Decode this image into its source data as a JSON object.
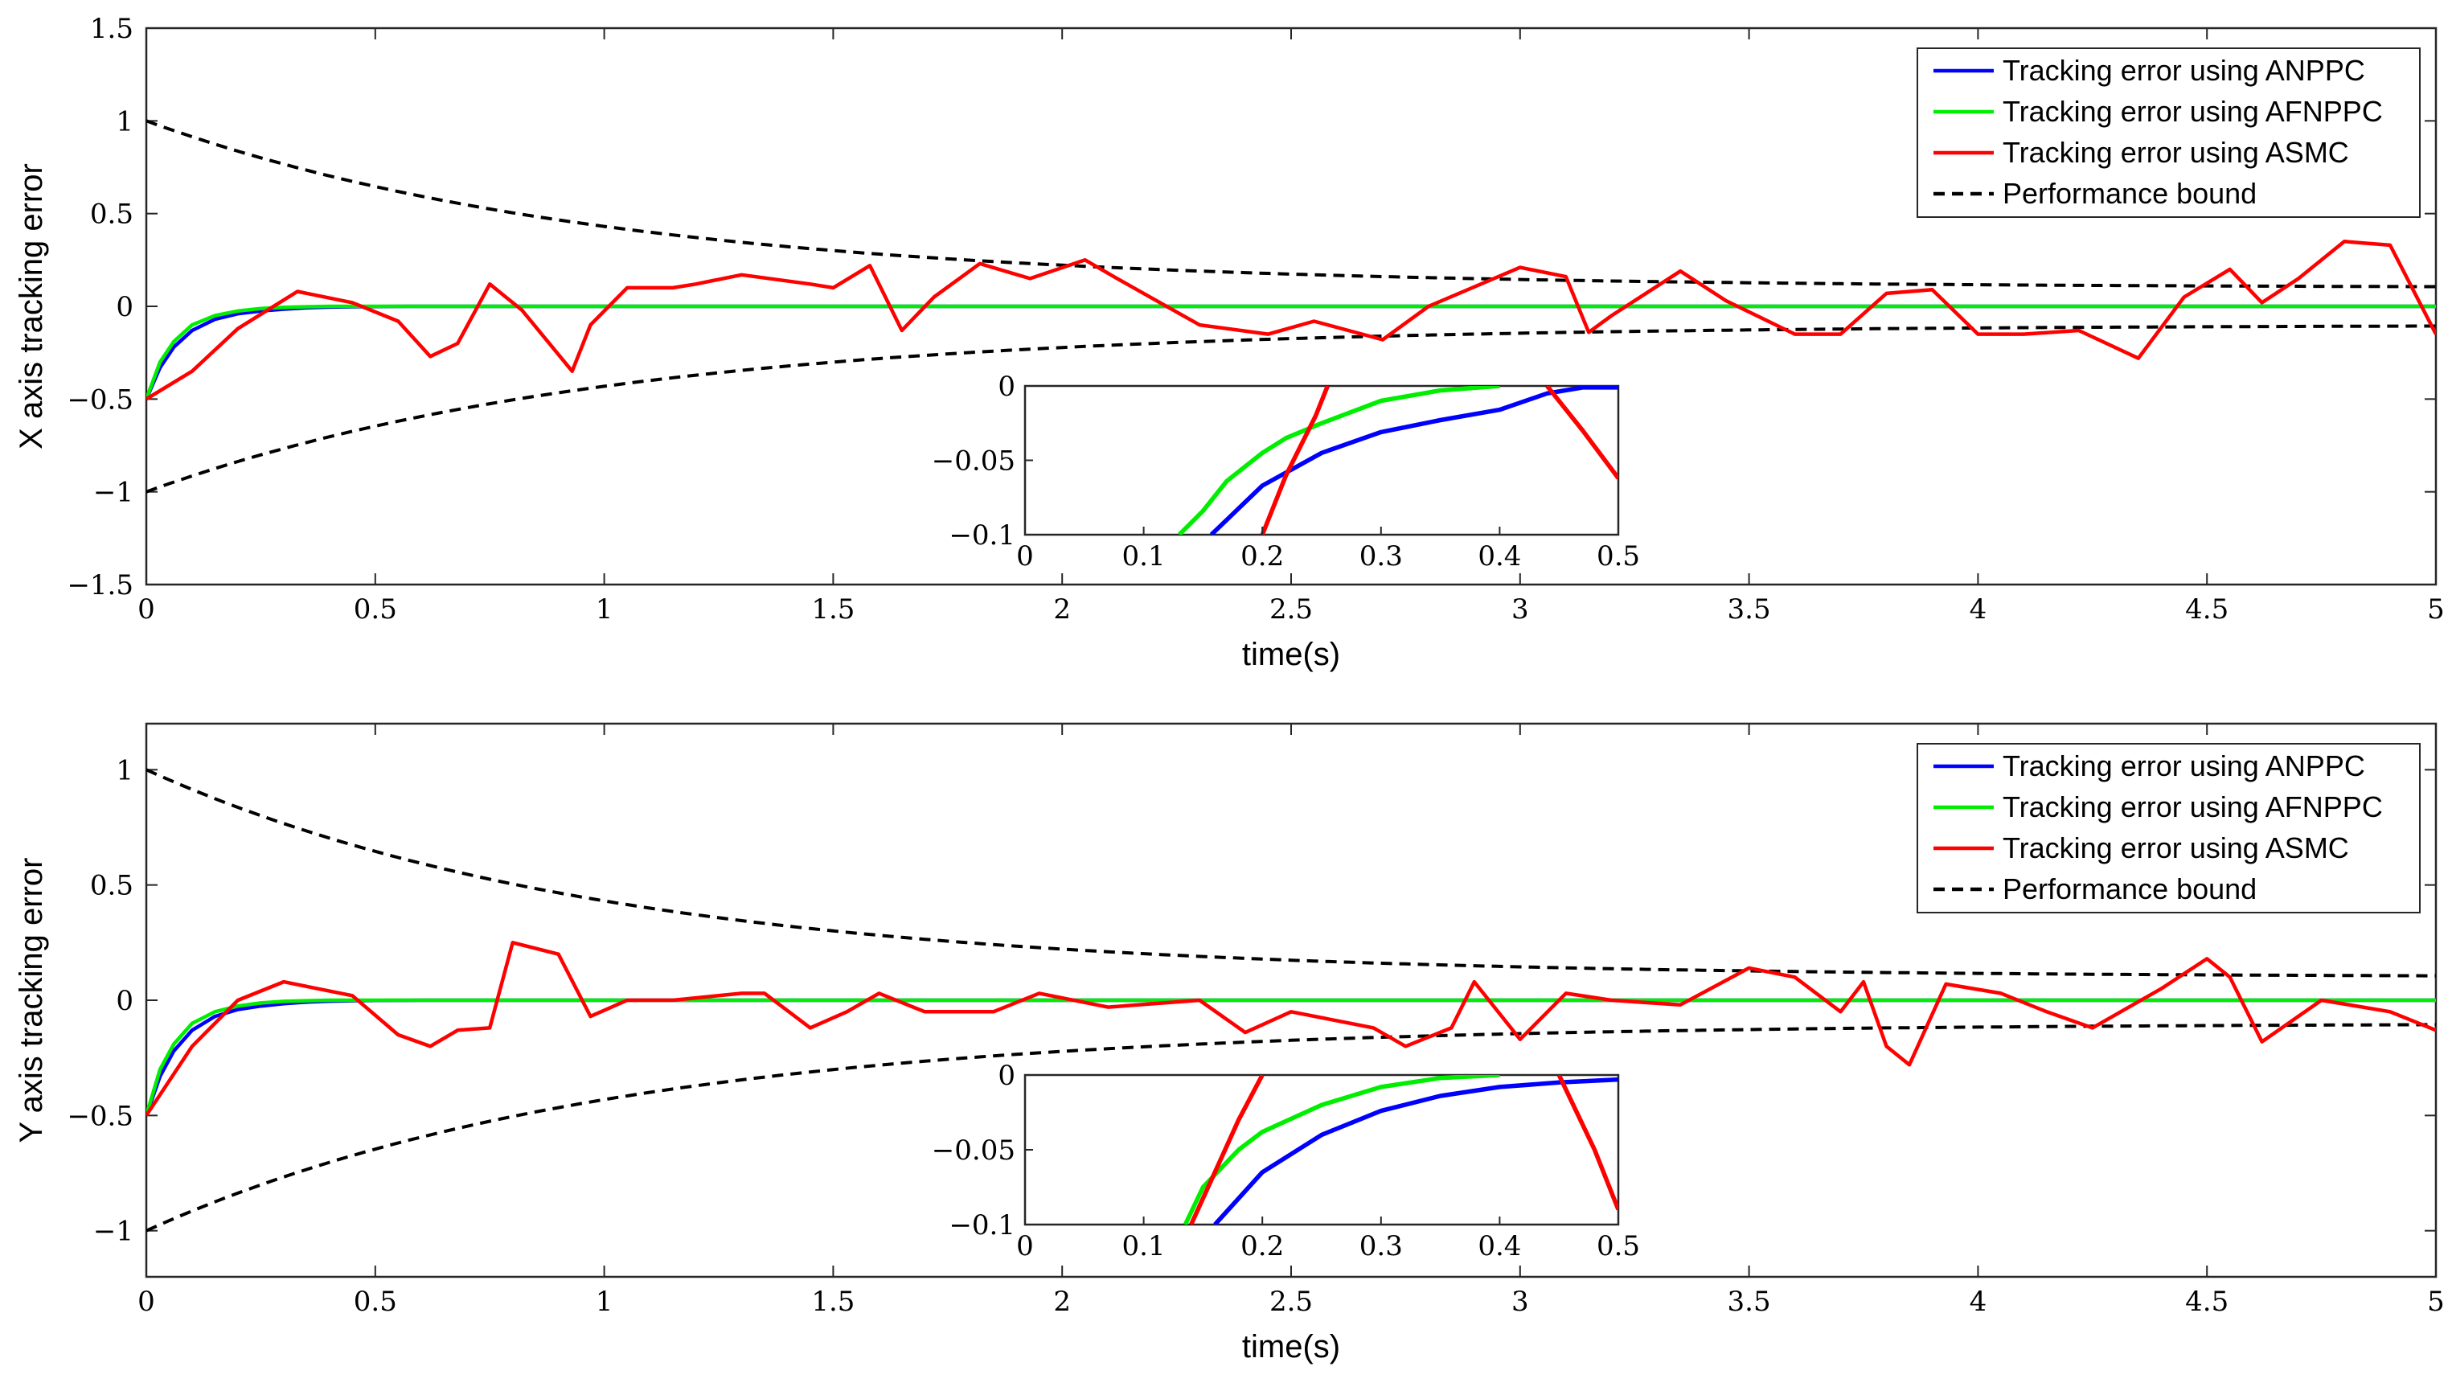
{
  "chart_data": [
    {
      "type": "line",
      "ylabel": "X axis tracking error",
      "xlabel": "time(s)",
      "xlim": [
        0,
        5
      ],
      "ylim": [
        -1.5,
        1.5
      ],
      "x_ticks": [
        "0",
        "0.5",
        "1",
        "1.5",
        "2",
        "2.5",
        "3",
        "3.5",
        "4",
        "4.5",
        "5"
      ],
      "y_ticks": [
        "−1.5",
        "−1",
        "−0.5",
        "0",
        "0.5",
        "1",
        "1.5"
      ],
      "y_tick_values": [
        -1.5,
        -1,
        -0.5,
        0,
        0.5,
        1,
        1.5
      ],
      "legend": [
        {
          "label": "Tracking error using ANPPC",
          "color": "#0000ff",
          "dash": false
        },
        {
          "label": "Tracking error using AFNPPC",
          "color": "#00ee00",
          "dash": false
        },
        {
          "label": "Tracking error using ASMC",
          "color": "#ff0000",
          "dash": false
        },
        {
          "label": "Performance bound",
          "color": "#000000",
          "dash": true
        }
      ],
      "bound": {
        "initial": 1.0,
        "final": 0.1,
        "decay_rate": 1.0
      },
      "series": [
        {
          "name": "Tracking error using ANPPC",
          "color": "#0000ff",
          "x": [
            0,
            0.03,
            0.06,
            0.1,
            0.15,
            0.2,
            0.25,
            0.3,
            0.35,
            0.4,
            0.45,
            0.5,
            0.6,
            5
          ],
          "y": [
            -0.5,
            -0.33,
            -0.22,
            -0.13,
            -0.07,
            -0.04,
            -0.025,
            -0.015,
            -0.008,
            -0.004,
            -0.002,
            -0.001,
            0,
            0
          ]
        },
        {
          "name": "Tracking error using AFNPPC",
          "color": "#00ee00",
          "x": [
            0,
            0.03,
            0.06,
            0.1,
            0.15,
            0.2,
            0.25,
            0.3,
            0.35,
            0.4,
            0.5,
            5
          ],
          "y": [
            -0.5,
            -0.3,
            -0.19,
            -0.1,
            -0.05,
            -0.025,
            -0.012,
            -0.005,
            -0.002,
            0,
            0,
            0
          ]
        },
        {
          "name": "Tracking error using ASMC",
          "color": "#ff0000",
          "x": [
            0,
            0.1,
            0.2,
            0.33,
            0.45,
            0.55,
            0.62,
            0.68,
            0.75,
            0.82,
            0.93,
            0.97,
            1.05,
            1.15,
            1.2,
            1.3,
            1.45,
            1.5,
            1.58,
            1.65,
            1.72,
            1.82,
            1.93,
            2.05,
            2.12,
            2.3,
            2.45,
            2.55,
            2.7,
            2.8,
            3.0,
            3.1,
            3.15,
            3.2,
            3.35,
            3.45,
            3.6,
            3.7,
            3.8,
            3.9,
            4.0,
            4.1,
            4.22,
            4.35,
            4.45,
            4.55,
            4.62,
            4.7,
            4.8,
            4.9,
            5.0
          ],
          "y": [
            -0.5,
            -0.35,
            -0.12,
            0.08,
            0.02,
            -0.08,
            -0.27,
            -0.2,
            0.12,
            -0.02,
            -0.35,
            -0.1,
            0.1,
            0.1,
            0.12,
            0.17,
            0.12,
            0.1,
            0.22,
            -0.13,
            0.05,
            0.23,
            0.15,
            0.25,
            0.15,
            -0.1,
            -0.15,
            -0.08,
            -0.18,
            0.0,
            0.21,
            0.16,
            -0.14,
            -0.05,
            0.19,
            0.03,
            -0.15,
            -0.15,
            0.07,
            0.09,
            -0.15,
            -0.15,
            -0.13,
            -0.28,
            0.05,
            0.2,
            0.02,
            0.15,
            0.35,
            0.33,
            -0.15
          ]
        }
      ],
      "inset": {
        "xlim": [
          0,
          0.5
        ],
        "ylim": [
          -0.1,
          0
        ],
        "x_ticks": [
          "0",
          "0.1",
          "0.2",
          "0.3",
          "0.4",
          "0.5"
        ],
        "y_ticks": [
          "−0.1",
          "−0.05",
          "0"
        ],
        "series": [
          {
            "name": "ANPPC",
            "color": "#0000ff",
            "x": [
              0.157,
              0.2,
              0.25,
              0.3,
              0.35,
              0.4,
              0.44,
              0.47,
              0.5
            ],
            "y": [
              -0.1,
              -0.067,
              -0.045,
              -0.031,
              -0.023,
              -0.016,
              -0.005,
              -0.001,
              -0.001
            ]
          },
          {
            "name": "AFNPPC",
            "color": "#00ee00",
            "x": [
              0.13,
              0.15,
              0.17,
              0.2,
              0.22,
              0.25,
              0.3,
              0.35,
              0.4
            ],
            "y": [
              -0.1,
              -0.084,
              -0.064,
              -0.045,
              -0.035,
              -0.025,
              -0.01,
              -0.003,
              0
            ]
          },
          {
            "name": "ASMC (rise)",
            "color": "#ff0000",
            "x": [
              0.2,
              0.22,
              0.245,
              0.255
            ],
            "y": [
              -0.1,
              -0.06,
              -0.02,
              0
            ]
          },
          {
            "name": "ASMC (fall)",
            "color": "#ff0000",
            "x": [
              0.44,
              0.47,
              0.5
            ],
            "y": [
              0,
              -0.03,
              -0.062
            ]
          }
        ]
      }
    },
    {
      "type": "line",
      "ylabel": "Y axis tracking error",
      "xlabel": "time(s)",
      "xlim": [
        0,
        5
      ],
      "ylim": [
        -1.2,
        1.2
      ],
      "x_ticks": [
        "0",
        "0.5",
        "1",
        "1.5",
        "2",
        "2.5",
        "3",
        "3.5",
        "4",
        "4.5",
        "5"
      ],
      "y_ticks": [
        "−1",
        "−0.5",
        "0",
        "0.5",
        "1"
      ],
      "y_tick_values": [
        -1,
        -0.5,
        0,
        0.5,
        1
      ],
      "legend": [
        {
          "label": "Tracking error using ANPPC",
          "color": "#0000ff",
          "dash": false
        },
        {
          "label": "Tracking error using AFNPPC",
          "color": "#00ee00",
          "dash": false
        },
        {
          "label": "Tracking error using ASMC",
          "color": "#ff0000",
          "dash": false
        },
        {
          "label": "Performance bound",
          "color": "#000000",
          "dash": true
        }
      ],
      "bound": {
        "initial": 1.0,
        "final": 0.1,
        "decay_rate": 1.0
      },
      "series": [
        {
          "name": "Tracking error using ANPPC",
          "color": "#0000ff",
          "x": [
            0,
            0.03,
            0.06,
            0.1,
            0.15,
            0.2,
            0.25,
            0.3,
            0.35,
            0.4,
            0.45,
            0.5,
            0.6,
            5
          ],
          "y": [
            -0.5,
            -0.33,
            -0.22,
            -0.13,
            -0.07,
            -0.04,
            -0.025,
            -0.015,
            -0.008,
            -0.004,
            -0.002,
            -0.001,
            0,
            0
          ]
        },
        {
          "name": "Tracking error using AFNPPC",
          "color": "#00ee00",
          "x": [
            0,
            0.03,
            0.06,
            0.1,
            0.15,
            0.2,
            0.25,
            0.3,
            0.35,
            0.4,
            0.5,
            5
          ],
          "y": [
            -0.5,
            -0.3,
            -0.19,
            -0.1,
            -0.05,
            -0.025,
            -0.012,
            -0.005,
            -0.002,
            0,
            0,
            0
          ]
        },
        {
          "name": "Tracking error using ASMC",
          "color": "#ff0000",
          "x": [
            0,
            0.1,
            0.2,
            0.3,
            0.45,
            0.55,
            0.62,
            0.68,
            0.75,
            0.8,
            0.9,
            0.97,
            1.05,
            1.15,
            1.3,
            1.35,
            1.45,
            1.53,
            1.6,
            1.7,
            1.85,
            1.95,
            2.1,
            2.3,
            2.4,
            2.5,
            2.68,
            2.75,
            2.85,
            2.9,
            3.0,
            3.1,
            3.2,
            3.35,
            3.5,
            3.6,
            3.7,
            3.75,
            3.8,
            3.85,
            3.93,
            4.05,
            4.15,
            4.25,
            4.4,
            4.5,
            4.55,
            4.62,
            4.75,
            4.9,
            5.0
          ],
          "y": [
            -0.5,
            -0.2,
            0.0,
            0.08,
            0.02,
            -0.15,
            -0.2,
            -0.13,
            -0.12,
            0.25,
            0.2,
            -0.07,
            0.0,
            0.0,
            0.03,
            0.03,
            -0.12,
            -0.05,
            0.03,
            -0.05,
            -0.05,
            0.03,
            -0.03,
            0.0,
            -0.14,
            -0.05,
            -0.12,
            -0.2,
            -0.12,
            0.08,
            -0.17,
            0.03,
            0.0,
            -0.02,
            0.14,
            0.1,
            -0.05,
            0.08,
            -0.2,
            -0.28,
            0.07,
            0.03,
            -0.05,
            -0.12,
            0.05,
            0.18,
            0.1,
            -0.18,
            0.0,
            -0.05,
            -0.13
          ]
        }
      ],
      "inset": {
        "xlim": [
          0,
          0.5
        ],
        "ylim": [
          -0.1,
          0
        ],
        "x_ticks": [
          "0",
          "0.1",
          "0.2",
          "0.3",
          "0.4",
          "0.5"
        ],
        "y_ticks": [
          "−0.1",
          "−0.05",
          "0"
        ],
        "series": [
          {
            "name": "ANPPC",
            "color": "#0000ff",
            "x": [
              0.16,
              0.2,
              0.25,
              0.3,
              0.35,
              0.4,
              0.45,
              0.5
            ],
            "y": [
              -0.1,
              -0.065,
              -0.04,
              -0.024,
              -0.014,
              -0.008,
              -0.005,
              -0.003
            ]
          },
          {
            "name": "AFNPPC",
            "color": "#00ee00",
            "x": [
              0.135,
              0.15,
              0.18,
              0.2,
              0.25,
              0.3,
              0.35,
              0.4
            ],
            "y": [
              -0.1,
              -0.075,
              -0.05,
              -0.038,
              -0.02,
              -0.008,
              -0.002,
              0
            ]
          },
          {
            "name": "ASMC (rise)",
            "color": "#ff0000",
            "x": [
              0.14,
              0.16,
              0.18,
              0.2
            ],
            "y": [
              -0.1,
              -0.065,
              -0.03,
              0
            ]
          },
          {
            "name": "ASMC (fall)",
            "color": "#ff0000",
            "x": [
              0.45,
              0.48,
              0.5
            ],
            "y": [
              0,
              -0.05,
              -0.09
            ]
          }
        ]
      }
    }
  ]
}
